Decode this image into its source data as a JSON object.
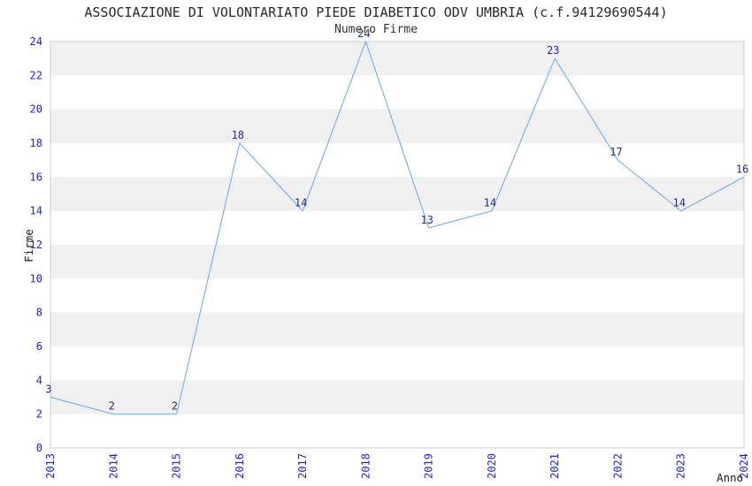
{
  "chart_data": {
    "type": "line",
    "title": "ASSOCIAZIONE DI VOLONTARIATO PIEDE DIABETICO ODV UMBRIA (c.f.94129690544)",
    "subtitle": "Numero Firme",
    "xlabel": "Anno",
    "ylabel": "Firme",
    "categories": [
      "2013",
      "2014",
      "2015",
      "2016",
      "2017",
      "2018",
      "2019",
      "2020",
      "2021",
      "2022",
      "2023",
      "2024"
    ],
    "values": [
      3,
      2,
      2,
      18,
      14,
      24,
      13,
      14,
      23,
      17,
      14,
      16
    ],
    "ylim": [
      0,
      24
    ],
    "ytick_step": 2,
    "grid": "alternating-horizontal-bands",
    "legend": "none",
    "colors": {
      "line": "#7eb3e8",
      "band": "#f0f0f0",
      "tick_labels": "#2424cc",
      "data_labels": "#2b2b85",
      "axis_titles": "#1a1a1a",
      "plot_border": "#cccccc",
      "title_text": "#2a2a2a"
    }
  }
}
